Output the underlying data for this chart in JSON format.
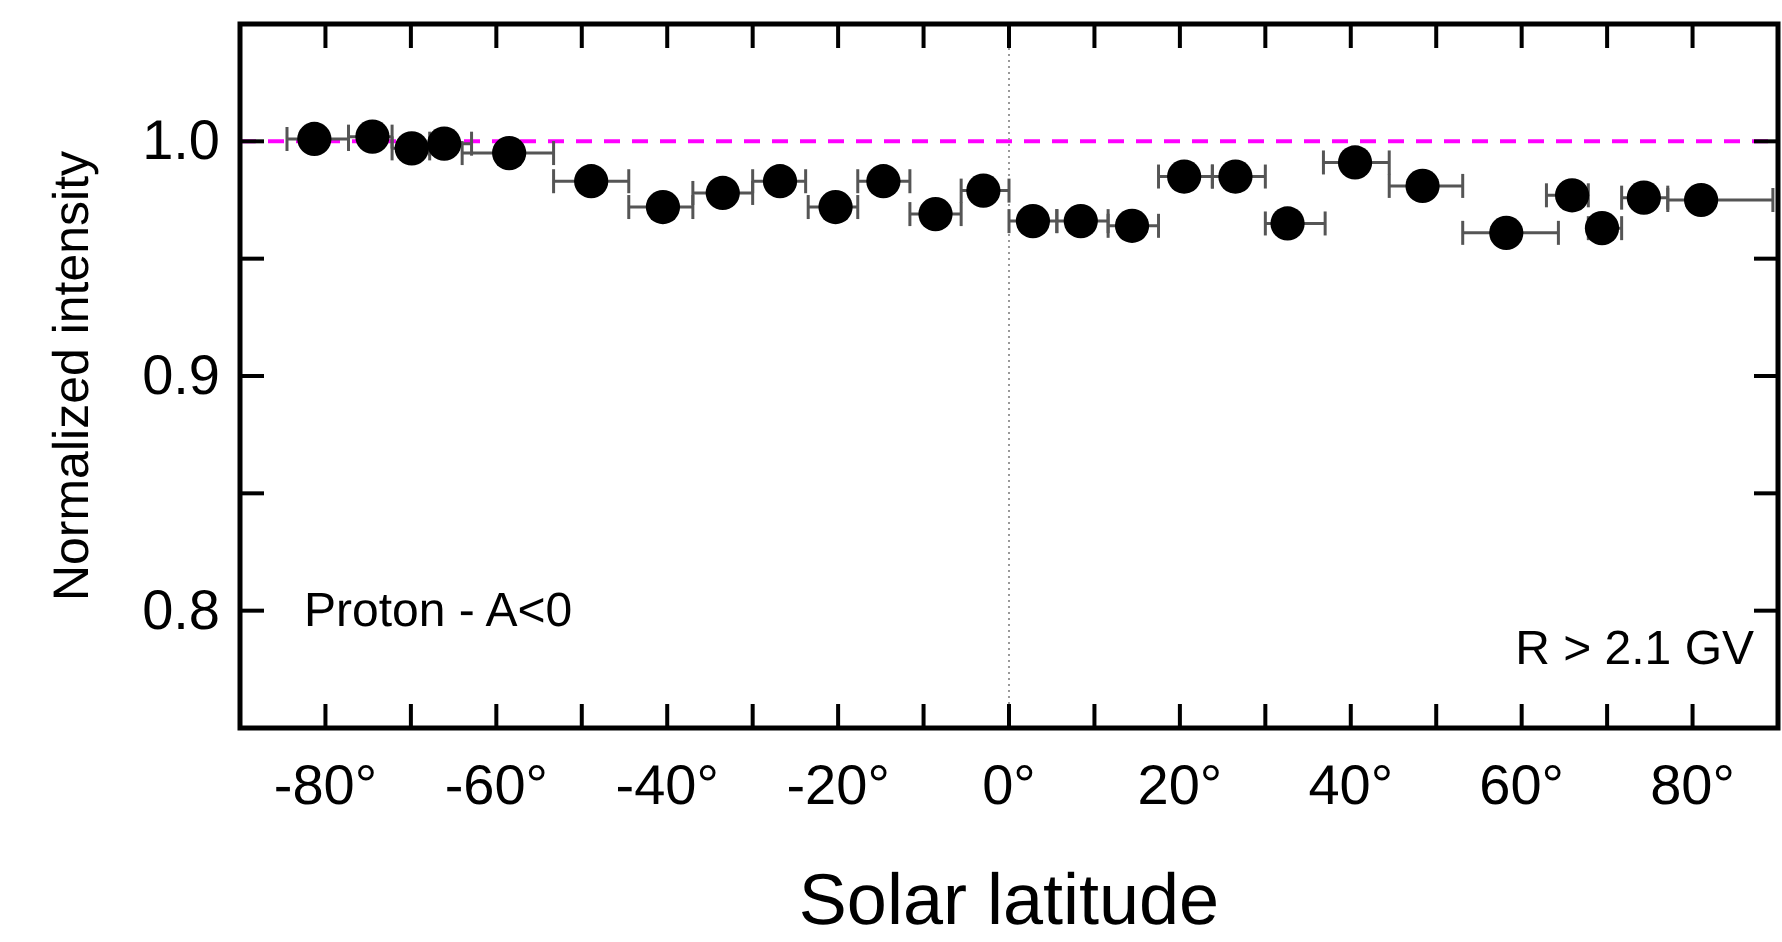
{
  "chart_data": {
    "type": "scatter",
    "xlabel": "Solar latitude",
    "ylabel": "Normalized intensity",
    "annotations": [
      "Proton - A<0",
      "R > 2.1 GV"
    ],
    "x": [
      -81.3,
      -74.5,
      -69.9,
      -66.1,
      -58.5,
      -48.9,
      -40.5,
      -33.5,
      -26.8,
      -20.3,
      -14.7,
      -8.6,
      -3.0,
      2.8,
      8.4,
      14.4,
      20.5,
      26.5,
      32.6,
      40.5,
      48.4,
      58.2,
      65.9,
      69.4,
      74.3,
      81.0
    ],
    "values": [
      1.001,
      1.002,
      0.997,
      0.999,
      0.995,
      0.983,
      0.972,
      0.978,
      0.983,
      0.972,
      0.983,
      0.969,
      0.979,
      0.966,
      0.966,
      0.964,
      0.985,
      0.985,
      0.965,
      0.991,
      0.981,
      0.961,
      0.977,
      0.963,
      0.976,
      0.975
    ],
    "xerrors": [
      [
        -84.5,
        -77.3
      ],
      [
        -77.3,
        -72.2
      ],
      [
        -72.2,
        -67.8
      ],
      [
        -67.8,
        -62.9
      ],
      [
        -64.0,
        -53.3
      ],
      [
        -53.3,
        -44.5
      ],
      [
        -44.5,
        -37.0
      ],
      [
        -37.0,
        -30.0
      ],
      [
        -30.0,
        -23.8
      ],
      [
        -23.5,
        -17.7
      ],
      [
        -17.7,
        -11.6
      ],
      [
        -11.6,
        -5.6
      ],
      [
        -5.6,
        0
      ],
      [
        0,
        5.6
      ],
      [
        5.6,
        11.6
      ],
      [
        11.6,
        17.5
      ],
      [
        17.5,
        23.8
      ],
      [
        23.8,
        30.0
      ],
      [
        30.0,
        37.0
      ],
      [
        36.8,
        44.5
      ],
      [
        44.5,
        53.1
      ],
      [
        53.1,
        64.3
      ],
      [
        62.9,
        67.8
      ],
      [
        67.8,
        71.7
      ],
      [
        71.7,
        77.1
      ],
      [
        77.1,
        89.4
      ]
    ],
    "color": "#000000",
    "marker": "circle",
    "xlim": [
      -90,
      90
    ],
    "xticks": [
      {
        "value": -80,
        "label": "-80°"
      },
      {
        "value": -70,
        "label": null
      },
      {
        "value": -60,
        "label": "-60°"
      },
      {
        "value": -50,
        "label": null
      },
      {
        "value": -40,
        "label": "-40°"
      },
      {
        "value": -30,
        "label": null
      },
      {
        "value": -20,
        "label": "-20°"
      },
      {
        "value": -10,
        "label": null
      },
      {
        "value": 0,
        "label": "0°"
      },
      {
        "value": 10,
        "label": null
      },
      {
        "value": 20,
        "label": "20°"
      },
      {
        "value": 30,
        "label": null
      },
      {
        "value": 40,
        "label": "40°"
      },
      {
        "value": 50,
        "label": null
      },
      {
        "value": 60,
        "label": "60°"
      },
      {
        "value": 70,
        "label": null
      },
      {
        "value": 80,
        "label": "80°"
      }
    ],
    "ylim": [
      0.75,
      1.05
    ],
    "yticks": [
      {
        "value": 0.8,
        "label": "0.8"
      },
      {
        "value": 0.85,
        "label": null
      },
      {
        "value": 0.9,
        "label": "0.9"
      },
      {
        "value": 0.95,
        "label": null
      },
      {
        "value": 1.0,
        "label": "1.0"
      }
    ],
    "ref_lines": [
      {
        "axis": "y",
        "value": 1.0,
        "label": null,
        "color": "#ff00ff",
        "line_style": "dashed"
      },
      {
        "axis": "x",
        "value": 0,
        "label": null,
        "color": "#999999",
        "line_style": "dotted"
      }
    ],
    "grid": false
  }
}
